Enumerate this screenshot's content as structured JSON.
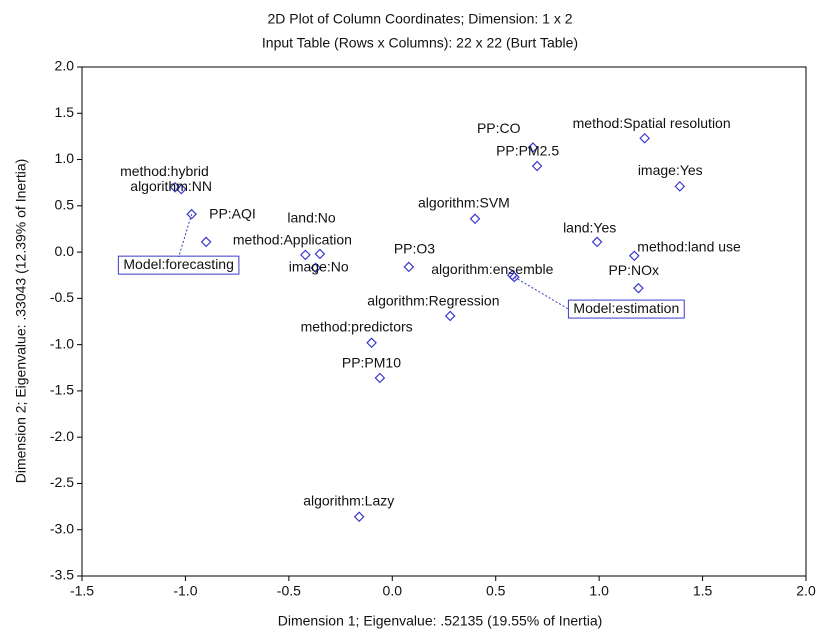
{
  "chart_data": {
    "type": "scatter",
    "title": "2D Plot of Column Coordinates; Dimension:  1 x  2",
    "subtitle": "Input Table (Rows x Columns): 22 x 22 (Burt Table)",
    "x_label": "Dimension 1; Eigenvalue: .52135 (19.55% of Inertia)",
    "y_label": "Dimension 2; Eigenvalue: .33043 (12.39% of Inertia)",
    "labels": [
      "method:hybrid",
      "algorithm:NN",
      "Model:forecasting",
      "PP:AQI",
      "land:No",
      "method:Application",
      "image:No",
      "PP:O3",
      "algorithm:SVM",
      "PP:CO",
      "method:Spatial resolution",
      "PP:PM2.5",
      "image:Yes",
      "land:Yes",
      "method:land use",
      "algorithm:ensemble",
      "Model:estimation",
      "PP:NOx",
      "algorithm:Regression",
      "method:predictors",
      "PP:PM10",
      "algorithm:Lazy"
    ],
    "x": [
      -1.05,
      -1.02,
      -0.97,
      -0.9,
      -0.42,
      -0.35,
      -0.37,
      0.08,
      0.4,
      0.68,
      1.22,
      0.7,
      1.39,
      0.99,
      1.17,
      0.58,
      0.59,
      1.19,
      0.28,
      -0.1,
      -0.06,
      -0.16
    ],
    "values": [
      0.7,
      0.68,
      0.41,
      0.11,
      -0.03,
      -0.02,
      -0.17,
      -0.16,
      0.36,
      1.13,
      1.23,
      0.93,
      0.71,
      0.11,
      -0.04,
      -0.25,
      -0.27,
      -0.39,
      -0.69,
      -0.98,
      -1.36,
      -2.86
    ],
    "color": "#3a3acc",
    "xlim": [
      -1.5,
      2.0
    ],
    "ylim": [
      -3.5,
      2.0
    ],
    "xticks": [
      -1.5,
      {
        "value": -1,
        "label": "-1.0"
      },
      -0.5,
      {
        "value": 0,
        "label": "0.0"
      },
      0.5,
      {
        "value": 1,
        "label": "1.0"
      },
      1.5,
      {
        "value": 2,
        "label": "2.0"
      }
    ],
    "yticks": [
      {
        "value": 2,
        "label": "2.0"
      },
      1.5,
      {
        "value": 1,
        "label": "1.0"
      },
      0.5,
      {
        "value": 0,
        "label": "0.0"
      },
      -0.5,
      {
        "value": -1,
        "label": "-1.0"
      },
      -1.5,
      {
        "value": -2,
        "label": "-2.0"
      },
      -2.5,
      {
        "value": -3,
        "label": "-3.0"
      },
      -3.5
    ],
    "grid": false
  }
}
